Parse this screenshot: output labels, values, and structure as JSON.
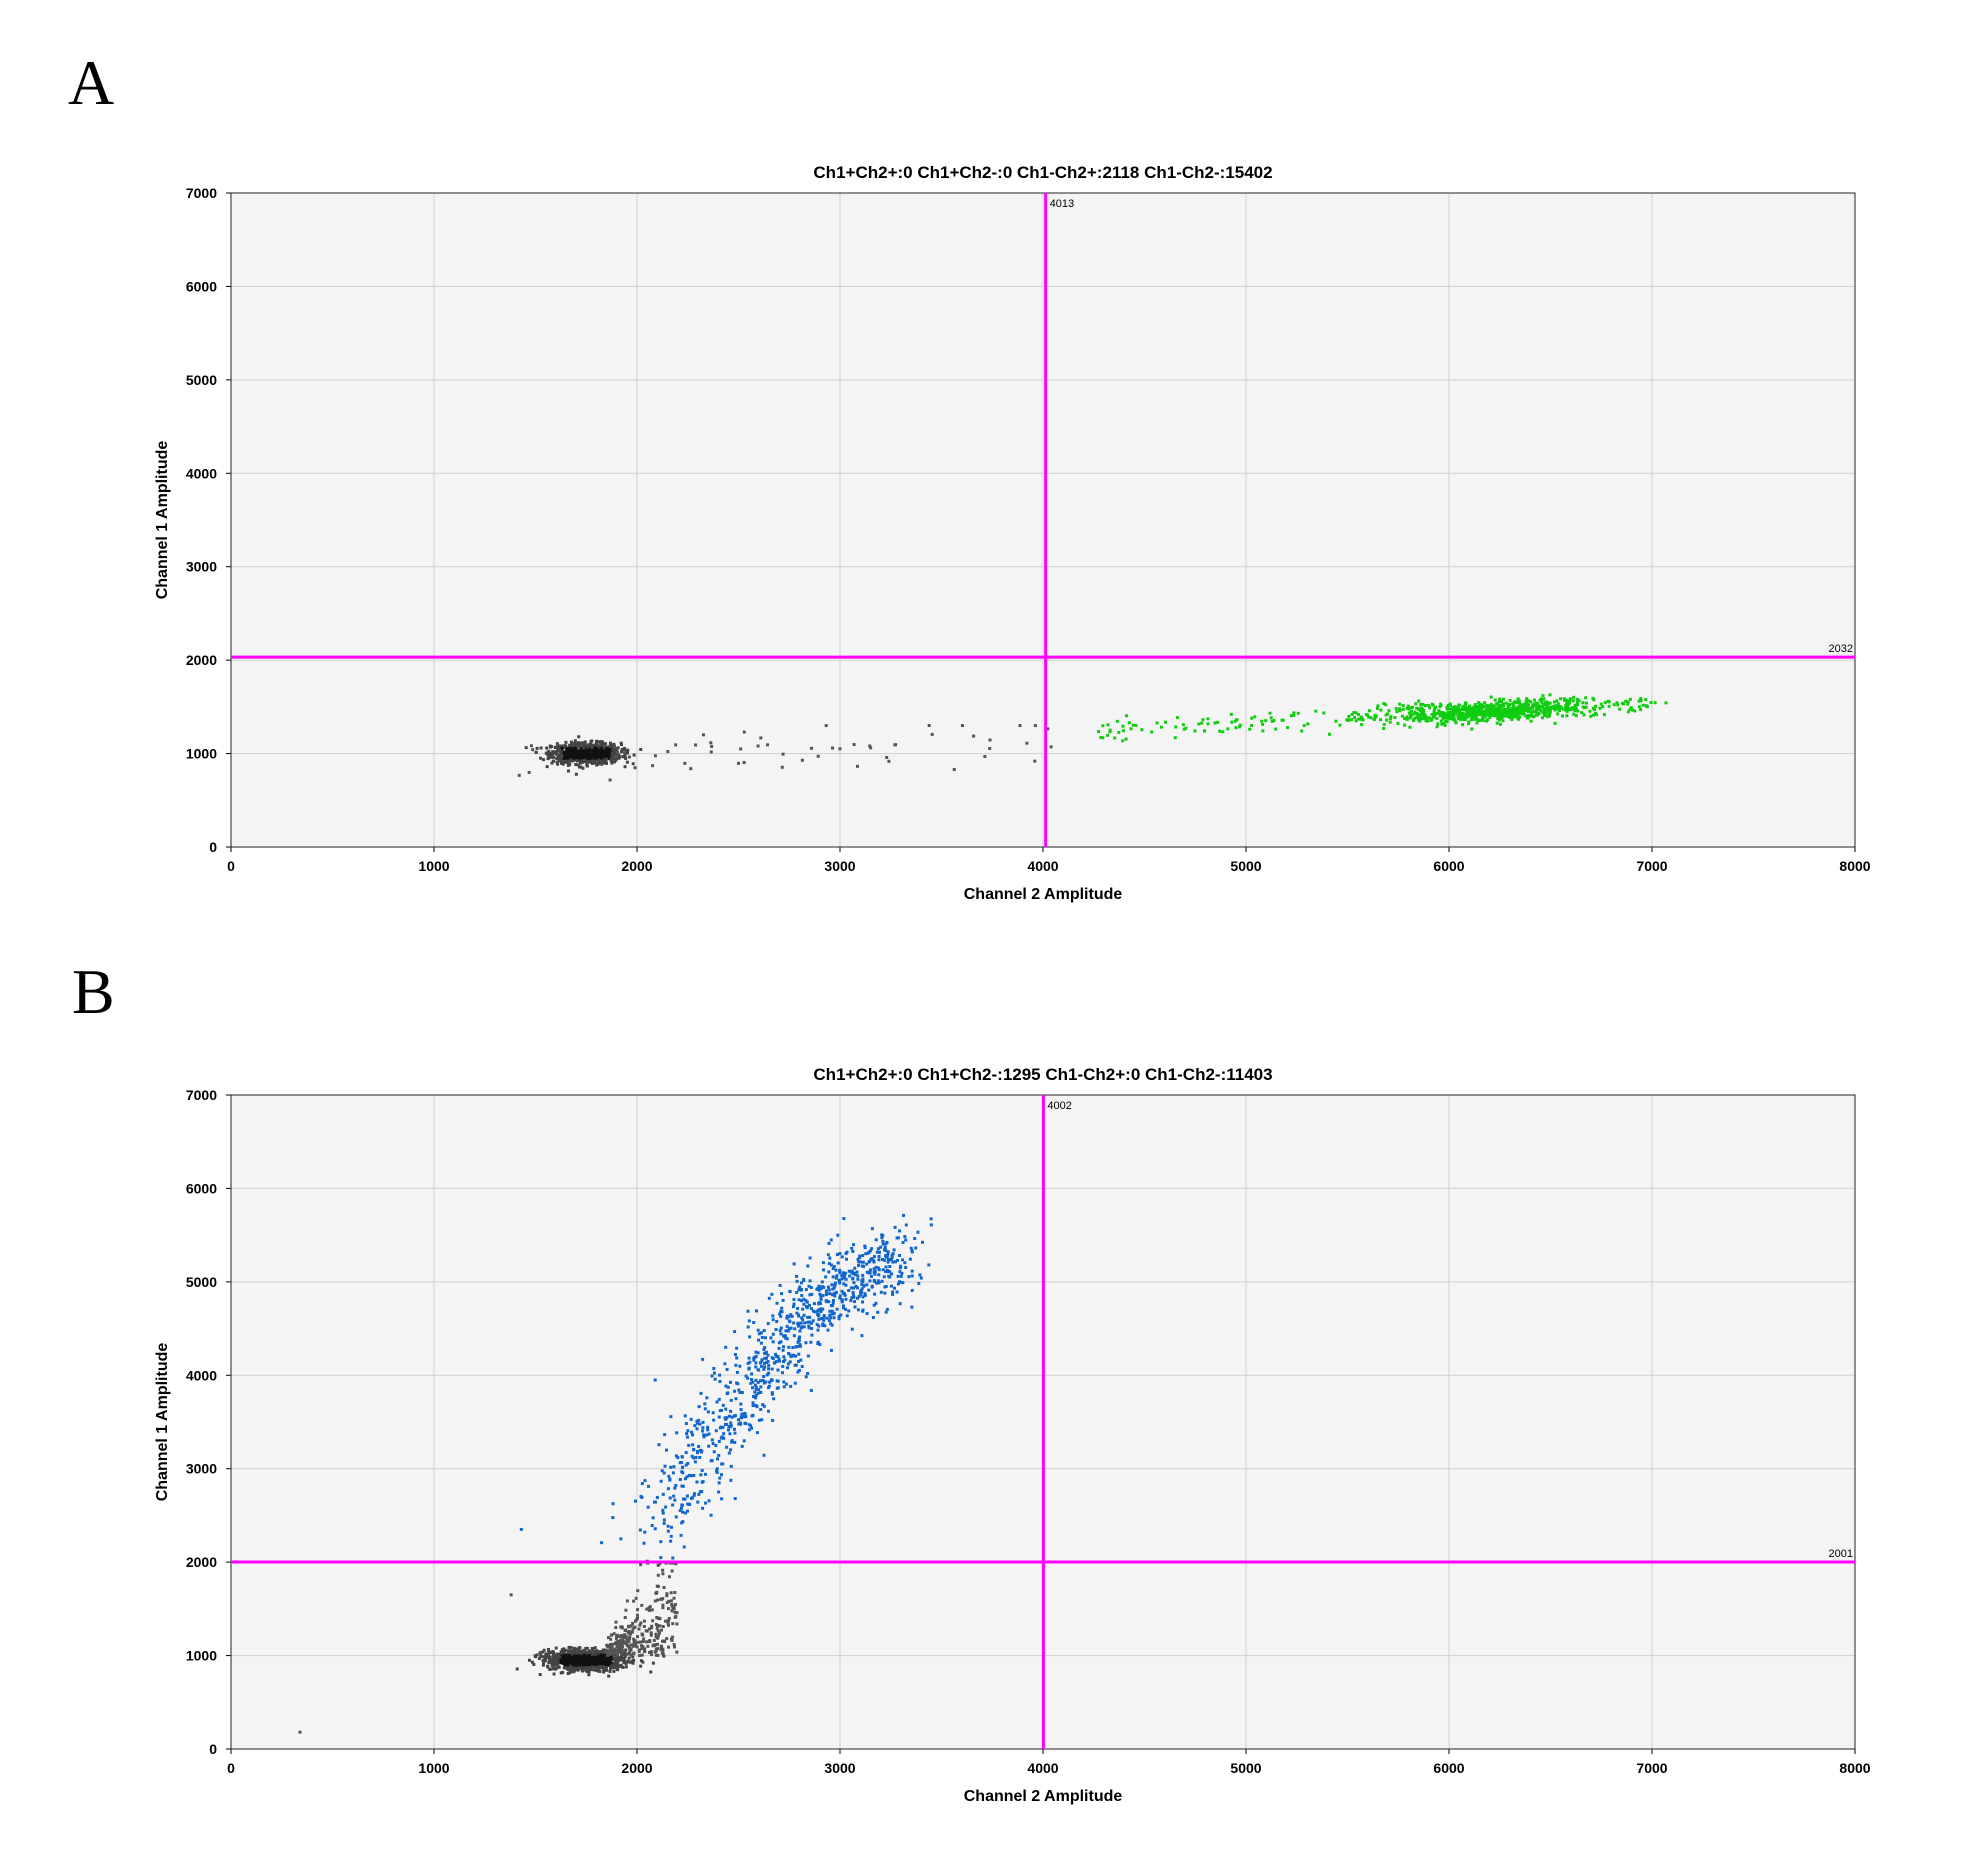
{
  "chart_data": [
    {
      "panel_label": "A",
      "type": "scatter",
      "title": "Ch1+Ch2+:0  Ch1+Ch2-:0  Ch1-Ch2+:2118  Ch1-Ch2-:15402",
      "xlabel": "Channel 2 Amplitude",
      "ylabel": "Channel 1 Amplitude",
      "xlim": [
        0,
        8000
      ],
      "ylim": [
        0,
        7000
      ],
      "xticks": [
        0,
        1000,
        2000,
        3000,
        4000,
        5000,
        6000,
        7000,
        8000
      ],
      "yticks": [
        0,
        1000,
        2000,
        3000,
        4000,
        5000,
        6000,
        7000
      ],
      "grid": true,
      "thresholds": {
        "ch2_vertical": 4013,
        "ch1_horizontal": 2032,
        "color": "#ff00ff"
      },
      "counts": {
        "Ch1+Ch2+": 0,
        "Ch1+Ch2-": 0,
        "Ch1-Ch2+": 2118,
        "Ch1-Ch2-": 15402
      },
      "clusters": [
        {
          "label": "Ch1-Ch2-",
          "color": "#1a1a1a",
          "x_center": 1750,
          "y_center": 1000,
          "x_range": [
            1500,
            2050
          ],
          "y_range": [
            750,
            1250
          ]
        },
        {
          "label": "Ch1-Ch2- scatter",
          "color": "#555555",
          "x_range": [
            1350,
            4100
          ],
          "y_range": [
            750,
            1300
          ]
        },
        {
          "label": "Ch1-Ch2+",
          "color": "#11cc11",
          "x_center": 6200,
          "y_center": 1500,
          "x_range": [
            4250,
            7000
          ],
          "y_range": [
            1150,
            1700
          ]
        }
      ]
    },
    {
      "panel_label": "B",
      "type": "scatter",
      "title": "Ch1+Ch2+:0  Ch1+Ch2-:1295  Ch1-Ch2+:0  Ch1-Ch2-:11403",
      "xlabel": "Channel 2 Amplitude",
      "ylabel": "Channel 1 Amplitude",
      "xlim": [
        0,
        8000
      ],
      "ylim": [
        0,
        7000
      ],
      "xticks": [
        0,
        1000,
        2000,
        3000,
        4000,
        5000,
        6000,
        7000,
        8000
      ],
      "yticks": [
        0,
        1000,
        2000,
        3000,
        4000,
        5000,
        6000,
        7000
      ],
      "grid": true,
      "thresholds": {
        "ch2_vertical": 4002,
        "ch1_horizontal": 2001,
        "color": "#ff00ff"
      },
      "counts": {
        "Ch1+Ch2+": 0,
        "Ch1+Ch2-": 1295,
        "Ch1-Ch2+": 0,
        "Ch1-Ch2-": 11403
      },
      "clusters": [
        {
          "label": "Ch1-Ch2-",
          "color": "#1a1a1a",
          "x_center": 1750,
          "y_center": 950,
          "x_range": [
            1400,
            2150
          ],
          "y_range": [
            650,
            2000
          ]
        },
        {
          "label": "Ch1+Ch2-",
          "color": "#1166cc",
          "x_center": 2700,
          "y_center": 4400,
          "x_range": [
            1950,
            3550
          ],
          "y_range": [
            2000,
            5550
          ]
        }
      ]
    }
  ]
}
